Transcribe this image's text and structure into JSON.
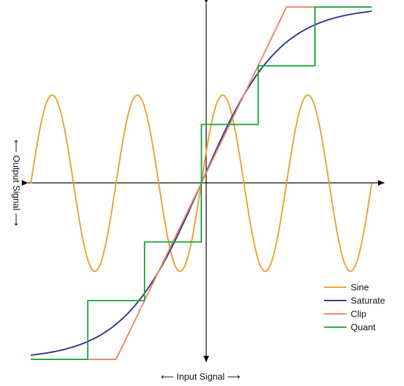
{
  "chart_data": {
    "type": "line",
    "title": "",
    "xlabel": "⟵ Input Signal ⟶",
    "ylabel": "⟵ Output Signal ⟶",
    "xlim": [
      -1,
      1
    ],
    "ylim": [
      -1,
      1
    ],
    "grid": false,
    "axes_style": "centered arrows, no ticks",
    "legend_position": "bottom-right",
    "series": [
      {
        "name": "Sine",
        "color": "#F0A030",
        "kind": "sine",
        "amplitude": 0.5,
        "cycles": 4
      },
      {
        "name": "Saturate",
        "color": "#2E3A8C",
        "kind": "tanh",
        "gain": 2.2
      },
      {
        "name": "Clip",
        "color": "#EE8866",
        "kind": "clip",
        "slope": 2
      },
      {
        "name": "Quant",
        "color": "#22AA44",
        "kind": "quantize",
        "steps": 3
      }
    ]
  }
}
